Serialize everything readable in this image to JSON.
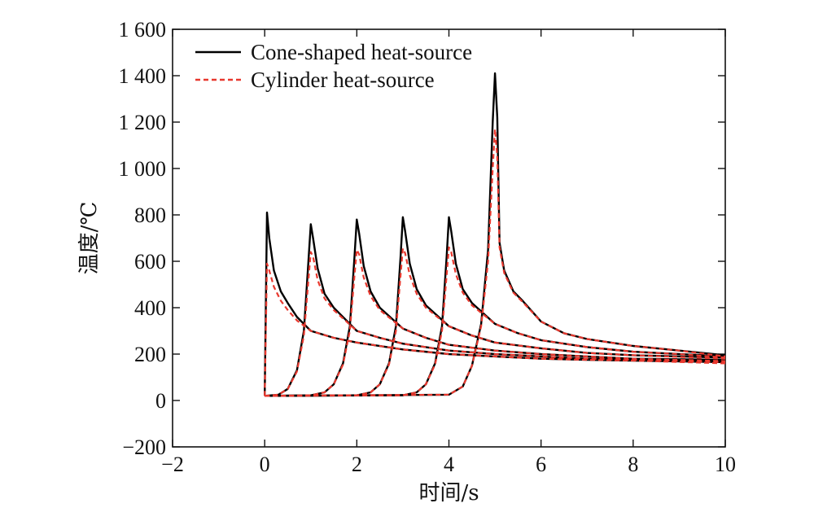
{
  "chart_data": {
    "type": "line",
    "xlabel": "时间/s",
    "ylabel": "温度/℃",
    "xlim": [
      -2,
      10
    ],
    "ylim": [
      -200,
      1600
    ],
    "xticks": [
      -2,
      0,
      2,
      4,
      6,
      8,
      10
    ],
    "xtick_labels": [
      "−2",
      "0",
      "2",
      "4",
      "6",
      "8",
      "10"
    ],
    "yticks": [
      -200,
      0,
      200,
      400,
      600,
      800,
      1000,
      1200,
      1400,
      1600
    ],
    "ytick_labels": [
      "−200",
      "0",
      "200",
      "400",
      "600",
      "800",
      "1 000",
      "1 200",
      "1 400",
      "1 600"
    ],
    "grid": false,
    "legend_position": "top-left",
    "series": [
      {
        "name": "Cone-shaped heat-source",
        "style": "solid",
        "color": "#000000",
        "curves": [
          [
            [
              0,
              20
            ],
            [
              0.05,
              810
            ],
            [
              0.1,
              700
            ],
            [
              0.2,
              560
            ],
            [
              0.35,
              470
            ],
            [
              0.5,
              420
            ],
            [
              0.7,
              360
            ],
            [
              1,
              300
            ],
            [
              1.5,
              270
            ],
            [
              2,
              250
            ],
            [
              3,
              220
            ],
            [
              4,
              200
            ],
            [
              5,
              190
            ],
            [
              6,
              180
            ],
            [
              7,
              175
            ],
            [
              8,
              172
            ],
            [
              10,
              165
            ]
          ],
          [
            [
              0,
              20
            ],
            [
              0.3,
              25
            ],
            [
              0.5,
              50
            ],
            [
              0.7,
              130
            ],
            [
              0.85,
              300
            ],
            [
              0.95,
              600
            ],
            [
              1,
              760
            ],
            [
              1.05,
              700
            ],
            [
              1.15,
              570
            ],
            [
              1.3,
              460
            ],
            [
              1.5,
              400
            ],
            [
              2,
              300
            ],
            [
              2.5,
              270
            ],
            [
              3,
              245
            ],
            [
              4,
              215
            ],
            [
              5,
              200
            ],
            [
              6,
              190
            ],
            [
              7,
              180
            ],
            [
              8,
              175
            ],
            [
              10,
              170
            ]
          ],
          [
            [
              0,
              20
            ],
            [
              1,
              22
            ],
            [
              1.3,
              35
            ],
            [
              1.5,
              70
            ],
            [
              1.7,
              160
            ],
            [
              1.85,
              320
            ],
            [
              1.95,
              620
            ],
            [
              2,
              780
            ],
            [
              2.05,
              720
            ],
            [
              2.15,
              580
            ],
            [
              2.3,
              470
            ],
            [
              2.5,
              400
            ],
            [
              3,
              310
            ],
            [
              3.5,
              270
            ],
            [
              4,
              240
            ],
            [
              5,
              215
            ],
            [
              6,
              200
            ],
            [
              7,
              190
            ],
            [
              8,
              180
            ],
            [
              10,
              175
            ]
          ],
          [
            [
              0,
              20
            ],
            [
              2,
              22
            ],
            [
              2.3,
              35
            ],
            [
              2.5,
              70
            ],
            [
              2.7,
              160
            ],
            [
              2.85,
              320
            ],
            [
              2.95,
              620
            ],
            [
              3,
              790
            ],
            [
              3.05,
              730
            ],
            [
              3.15,
              590
            ],
            [
              3.3,
              480
            ],
            [
              3.5,
              410
            ],
            [
              4,
              320
            ],
            [
              4.5,
              280
            ],
            [
              5,
              250
            ],
            [
              6,
              225
            ],
            [
              7,
              205
            ],
            [
              8,
              195
            ],
            [
              10,
              185
            ]
          ],
          [
            [
              0,
              20
            ],
            [
              3,
              22
            ],
            [
              3.3,
              35
            ],
            [
              3.5,
              70
            ],
            [
              3.7,
              160
            ],
            [
              3.85,
              320
            ],
            [
              3.95,
              620
            ],
            [
              4,
              790
            ],
            [
              4.05,
              730
            ],
            [
              4.15,
              590
            ],
            [
              4.3,
              480
            ],
            [
              4.5,
              420
            ],
            [
              5,
              330
            ],
            [
              5.5,
              290
            ],
            [
              6,
              260
            ],
            [
              7,
              230
            ],
            [
              8,
              210
            ],
            [
              9,
              200
            ],
            [
              10,
              190
            ]
          ],
          [
            [
              0,
              20
            ],
            [
              4,
              25
            ],
            [
              4.3,
              60
            ],
            [
              4.5,
              150
            ],
            [
              4.7,
              330
            ],
            [
              4.85,
              650
            ],
            [
              4.95,
              1200
            ],
            [
              5,
              1410
            ],
            [
              5.05,
              1220
            ],
            [
              5.1,
              680
            ],
            [
              5.2,
              560
            ],
            [
              5.4,
              470
            ],
            [
              5.6,
              430
            ],
            [
              6,
              340
            ],
            [
              6.5,
              290
            ],
            [
              7,
              265
            ],
            [
              8,
              235
            ],
            [
              9,
              215
            ],
            [
              10,
              195
            ]
          ]
        ]
      },
      {
        "name": "Cylinder heat-source",
        "style": "dashed",
        "color": "#e8382e",
        "curves": [
          [
            [
              0,
              20
            ],
            [
              0.05,
              590
            ],
            [
              0.1,
              560
            ],
            [
              0.2,
              490
            ],
            [
              0.35,
              430
            ],
            [
              0.5,
              390
            ],
            [
              0.7,
              345
            ],
            [
              1,
              300
            ],
            [
              1.5,
              270
            ],
            [
              2,
              250
            ],
            [
              3,
              220
            ],
            [
              4,
              200
            ],
            [
              5,
              190
            ],
            [
              6,
              180
            ],
            [
              7,
              175
            ],
            [
              8,
              172
            ],
            [
              10,
              160
            ]
          ],
          [
            [
              0,
              20
            ],
            [
              0.3,
              25
            ],
            [
              0.5,
              50
            ],
            [
              0.7,
              125
            ],
            [
              0.85,
              280
            ],
            [
              0.95,
              520
            ],
            [
              1,
              640
            ],
            [
              1.05,
              620
            ],
            [
              1.15,
              520
            ],
            [
              1.3,
              440
            ],
            [
              1.5,
              390
            ],
            [
              2,
              300
            ],
            [
              2.5,
              270
            ],
            [
              3,
              245
            ],
            [
              4,
              215
            ],
            [
              5,
              200
            ],
            [
              6,
              190
            ],
            [
              7,
              180
            ],
            [
              8,
              175
            ],
            [
              10,
              165
            ]
          ],
          [
            [
              0,
              20
            ],
            [
              1,
              22
            ],
            [
              1.3,
              35
            ],
            [
              1.5,
              70
            ],
            [
              1.7,
              155
            ],
            [
              1.85,
              300
            ],
            [
              1.95,
              540
            ],
            [
              2,
              650
            ],
            [
              2.05,
              630
            ],
            [
              2.15,
              530
            ],
            [
              2.3,
              450
            ],
            [
              2.5,
              390
            ],
            [
              3,
              310
            ],
            [
              3.5,
              270
            ],
            [
              4,
              240
            ],
            [
              5,
              215
            ],
            [
              6,
              200
            ],
            [
              7,
              190
            ],
            [
              8,
              180
            ],
            [
              10,
              170
            ]
          ],
          [
            [
              0,
              20
            ],
            [
              2,
              22
            ],
            [
              2.3,
              35
            ],
            [
              2.5,
              70
            ],
            [
              2.7,
              155
            ],
            [
              2.85,
              300
            ],
            [
              2.95,
              540
            ],
            [
              3,
              655
            ],
            [
              3.05,
              635
            ],
            [
              3.15,
              540
            ],
            [
              3.3,
              460
            ],
            [
              3.5,
              400
            ],
            [
              4,
              320
            ],
            [
              4.5,
              280
            ],
            [
              5,
              250
            ],
            [
              6,
              225
            ],
            [
              7,
              205
            ],
            [
              8,
              195
            ],
            [
              10,
              180
            ]
          ],
          [
            [
              0,
              20
            ],
            [
              3,
              22
            ],
            [
              3.3,
              35
            ],
            [
              3.5,
              70
            ],
            [
              3.7,
              155
            ],
            [
              3.85,
              300
            ],
            [
              3.95,
              540
            ],
            [
              4,
              660
            ],
            [
              4.05,
              640
            ],
            [
              4.15,
              545
            ],
            [
              4.3,
              465
            ],
            [
              4.5,
              410
            ],
            [
              5,
              330
            ],
            [
              5.5,
              290
            ],
            [
              6,
              260
            ],
            [
              7,
              230
            ],
            [
              8,
              210
            ],
            [
              9,
              200
            ],
            [
              10,
              185
            ]
          ],
          [
            [
              0,
              20
            ],
            [
              4,
              25
            ],
            [
              4.3,
              60
            ],
            [
              4.5,
              150
            ],
            [
              4.7,
              320
            ],
            [
              4.85,
              600
            ],
            [
              4.95,
              1000
            ],
            [
              5,
              1170
            ],
            [
              5.05,
              1050
            ],
            [
              5.1,
              660
            ],
            [
              5.2,
              550
            ],
            [
              5.4,
              465
            ],
            [
              5.6,
              425
            ],
            [
              6,
              340
            ],
            [
              6.5,
              290
            ],
            [
              7,
              265
            ],
            [
              8,
              235
            ],
            [
              9,
              215
            ],
            [
              10,
              190
            ]
          ]
        ]
      }
    ]
  }
}
